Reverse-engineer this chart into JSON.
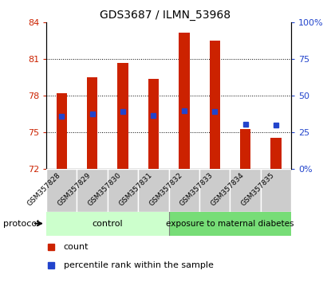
{
  "title": "GDS3687 / ILMN_53968",
  "samples": [
    "GSM357828",
    "GSM357829",
    "GSM357830",
    "GSM357831",
    "GSM357832",
    "GSM357833",
    "GSM357834",
    "GSM357835"
  ],
  "count_values": [
    78.2,
    79.5,
    80.7,
    79.4,
    83.2,
    82.5,
    75.3,
    74.6
  ],
  "percentile_values": [
    76.3,
    76.5,
    76.7,
    76.4,
    76.8,
    76.7,
    75.7,
    75.6
  ],
  "ylim_left": [
    72,
    84
  ],
  "ylim_right": [
    0,
    100
  ],
  "yticks_left": [
    72,
    75,
    78,
    81,
    84
  ],
  "yticks_right": [
    0,
    25,
    50,
    75,
    100
  ],
  "ytick_labels_right": [
    "0%",
    "25",
    "50",
    "75",
    "100%"
  ],
  "bar_color": "#cc2200",
  "percentile_color": "#2244cc",
  "plot_bg": "#ffffff",
  "control_label": "control",
  "treatment_label": "exposure to maternal diabetes",
  "protocol_label": "protocol",
  "n_control": 4,
  "control_bg": "#ccffcc",
  "treatment_bg": "#77dd77",
  "legend_count": "count",
  "legend_percentile": "percentile rank within the sample",
  "bar_width": 0.35,
  "base_value": 72,
  "gridline_values": [
    75,
    78,
    81
  ],
  "cell_bg": "#cccccc"
}
